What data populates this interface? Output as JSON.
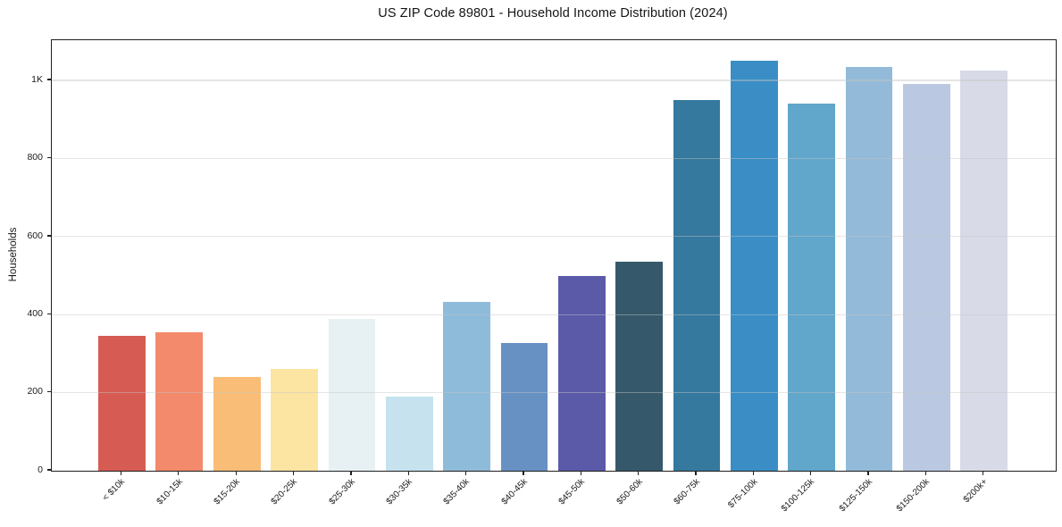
{
  "chart_data": {
    "type": "bar",
    "title": "US ZIP Code 89801 - Household Income Distribution (2024)",
    "ylabel": "Households",
    "xlabel": "",
    "categories": [
      "< $10k",
      "$10-15k",
      "$15-20k",
      "$20-25k",
      "$25-30k",
      "$30-35k",
      "$35-40k",
      "$40-45k",
      "$45-50k",
      "$50-60k",
      "$60-75k",
      "$75-100k",
      "$100-125k",
      "$125-150k",
      "$150-200k",
      "$200k+"
    ],
    "values": [
      345,
      355,
      240,
      262,
      388,
      190,
      433,
      328,
      500,
      535,
      950,
      1050,
      940,
      1035,
      990,
      1025
    ],
    "bar_colors": [
      "#d65c53",
      "#f28a6b",
      "#f9bd77",
      "#fce5a2",
      "#e7f1f4",
      "#c6e2ef",
      "#8fbbdb",
      "#6791c3",
      "#5b5aa8",
      "#35596b",
      "#35799e",
      "#3a8ec5",
      "#61a6cb",
      "#93bad8",
      "#bac9e1",
      "#d8dae7"
    ],
    "ylim": [
      0,
      1103
    ],
    "yticks": [
      {
        "value": 0,
        "label": "0"
      },
      {
        "value": 200,
        "label": "200"
      },
      {
        "value": 400,
        "label": "400"
      },
      {
        "value": 600,
        "label": "600"
      },
      {
        "value": 800,
        "label": "800"
      },
      {
        "value": 1000,
        "label": "1K"
      }
    ],
    "gridlines": [
      200,
      400,
      600,
      800,
      1000
    ],
    "grid": "horizontal-only",
    "grid_above_bars": true,
    "legend": "none",
    "x_tick_rotation_deg": 45,
    "spine_color": "#1f1f1f",
    "background_color": "#ffffff"
  }
}
